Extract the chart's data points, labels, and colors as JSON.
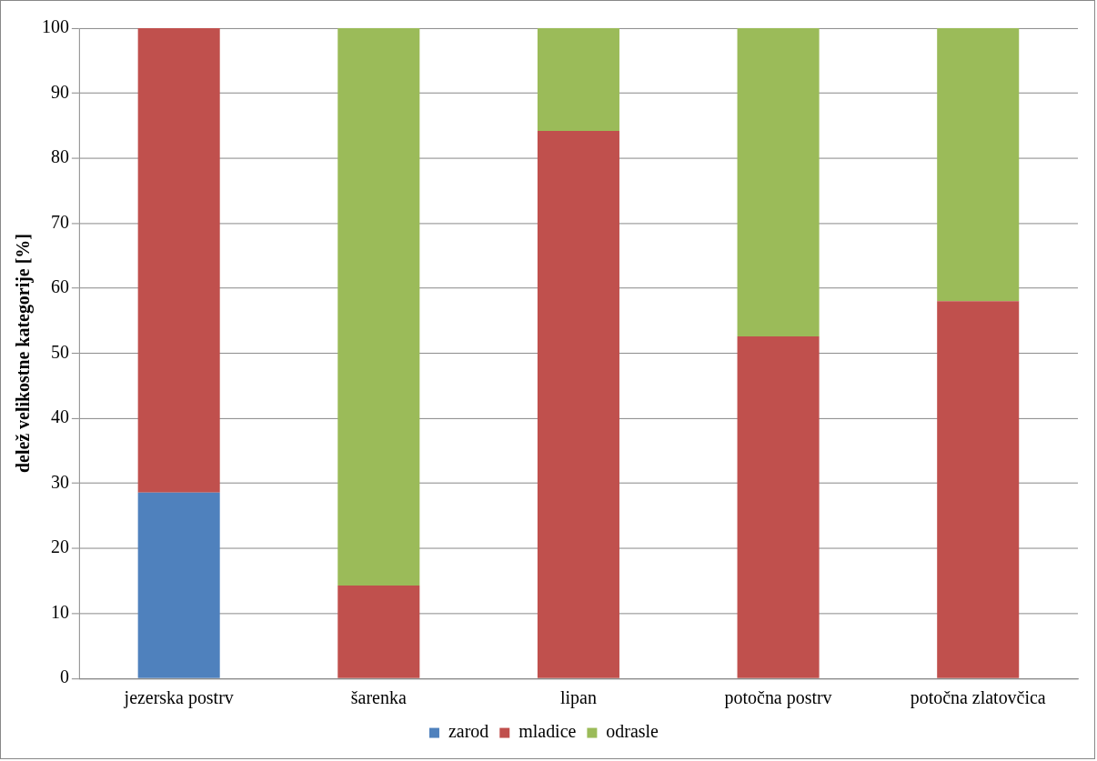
{
  "chart_data": {
    "type": "bar",
    "stacked": true,
    "ylabel": "delež velikostne kategorije [%]",
    "categories": [
      "jezerska postrv",
      "šarenka",
      "lipan",
      "potočna postrv",
      "potočna zlatovčica"
    ],
    "series": [
      {
        "name": "zarod",
        "color": "#4f81bd",
        "values": [
          28.6,
          0,
          0,
          0,
          0
        ]
      },
      {
        "name": "mladice",
        "color": "#c0504d",
        "values": [
          71.4,
          14.3,
          84.2,
          52.6,
          58
        ]
      },
      {
        "name": "odrasle",
        "color": "#9bbb59",
        "values": [
          0,
          85.7,
          15.8,
          47.4,
          42
        ]
      }
    ],
    "ylim": [
      0,
      100
    ],
    "yticks": [
      0,
      10,
      20,
      30,
      40,
      50,
      60,
      70,
      80,
      90,
      100
    ],
    "grid": "y",
    "legend": "bottom"
  }
}
